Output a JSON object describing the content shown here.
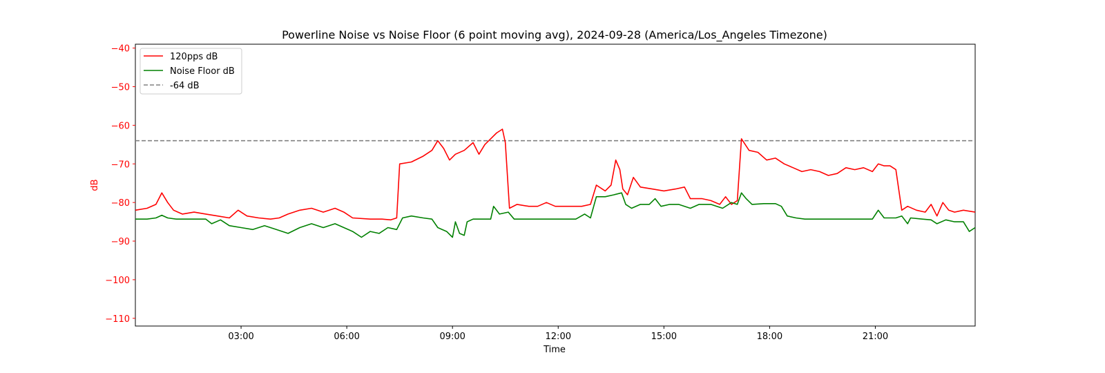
{
  "chart_data": {
    "type": "line",
    "title": "Powerline Noise vs Noise Floor (6 point moving avg), 2024-09-28 (America/Los_Angeles Timezone)",
    "xlabel": "Time",
    "ylabel": "dB",
    "ylabel_color": "#ff0000",
    "ytick_color": "#ff0000",
    "xlim": [
      "00:00",
      "23:50"
    ],
    "ylim": [
      -112,
      -39
    ],
    "xticks": [
      "03:00",
      "06:00",
      "09:00",
      "12:00",
      "15:00",
      "18:00",
      "21:00"
    ],
    "yticks": [
      -40,
      -50,
      -60,
      -70,
      -80,
      -90,
      -100,
      -110
    ],
    "ytick_labels": [
      "−40",
      "−50",
      "−60",
      "−70",
      "−80",
      "−90",
      "−100",
      "−110"
    ],
    "grid": false,
    "legend_position": "top-left",
    "reference_line": {
      "name": "-64 dB",
      "y": -64,
      "color": "#808080",
      "style": "dashed"
    },
    "series": [
      {
        "name": "120pps dB",
        "color": "#ff0000",
        "points": [
          [
            "00:00",
            -82
          ],
          [
            "00:20",
            -81.5
          ],
          [
            "00:35",
            -80.5
          ],
          [
            "00:45",
            -77.5
          ],
          [
            "00:55",
            -80
          ],
          [
            "01:05",
            -82
          ],
          [
            "01:20",
            -83
          ],
          [
            "01:40",
            -82.5
          ],
          [
            "02:00",
            -83
          ],
          [
            "02:20",
            -83.5
          ],
          [
            "02:40",
            -84
          ],
          [
            "02:55",
            -82
          ],
          [
            "03:10",
            -83.5
          ],
          [
            "03:30",
            -84
          ],
          [
            "03:50",
            -84.3
          ],
          [
            "04:05",
            -84
          ],
          [
            "04:20",
            -83
          ],
          [
            "04:40",
            -82
          ],
          [
            "05:00",
            -81.5
          ],
          [
            "05:20",
            -82.5
          ],
          [
            "05:40",
            -81.5
          ],
          [
            "05:55",
            -82.5
          ],
          [
            "06:10",
            -84
          ],
          [
            "06:40",
            -84.3
          ],
          [
            "07:00",
            -84.3
          ],
          [
            "07:15",
            -84.5
          ],
          [
            "07:25",
            -84
          ],
          [
            "07:30",
            -70
          ],
          [
            "07:50",
            -69.5
          ],
          [
            "08:10",
            -68
          ],
          [
            "08:25",
            -66.5
          ],
          [
            "08:35",
            -64
          ],
          [
            "08:45",
            -66
          ],
          [
            "08:55",
            -69
          ],
          [
            "09:05",
            -67.5
          ],
          [
            "09:20",
            -66.5
          ],
          [
            "09:35",
            -64.5
          ],
          [
            "09:45",
            -67.5
          ],
          [
            "09:55",
            -65
          ],
          [
            "10:05",
            -63.5
          ],
          [
            "10:15",
            -62
          ],
          [
            "10:25",
            -61
          ],
          [
            "10:30",
            -64.5
          ],
          [
            "10:37",
            -81.5
          ],
          [
            "10:50",
            -80.5
          ],
          [
            "11:10",
            -81
          ],
          [
            "11:25",
            -81
          ],
          [
            "11:40",
            -80
          ],
          [
            "11:55",
            -81
          ],
          [
            "12:10",
            -81
          ],
          [
            "12:40",
            -81
          ],
          [
            "12:55",
            -80.5
          ],
          [
            "13:05",
            -75.5
          ],
          [
            "13:20",
            -77
          ],
          [
            "13:30",
            -75.5
          ],
          [
            "13:38",
            -69
          ],
          [
            "13:45",
            -71.5
          ],
          [
            "13:50",
            -76.5
          ],
          [
            "13:58",
            -78
          ],
          [
            "14:08",
            -73.5
          ],
          [
            "14:20",
            -76
          ],
          [
            "14:40",
            -76.5
          ],
          [
            "15:00",
            -77
          ],
          [
            "15:20",
            -76.5
          ],
          [
            "15:35",
            -76
          ],
          [
            "15:45",
            -79
          ],
          [
            "16:05",
            -79
          ],
          [
            "16:20",
            -79.5
          ],
          [
            "16:35",
            -80.5
          ],
          [
            "16:45",
            -78.5
          ],
          [
            "16:55",
            -80.5
          ],
          [
            "17:05",
            -79.5
          ],
          [
            "17:12",
            -63.5
          ],
          [
            "17:25",
            -66.5
          ],
          [
            "17:40",
            -67
          ],
          [
            "17:55",
            -69
          ],
          [
            "18:10",
            -68.5
          ],
          [
            "18:25",
            -70
          ],
          [
            "18:40",
            -71
          ],
          [
            "18:55",
            -72
          ],
          [
            "19:10",
            -71.5
          ],
          [
            "19:25",
            -72
          ],
          [
            "19:40",
            -73
          ],
          [
            "19:55",
            -72.5
          ],
          [
            "20:10",
            -71
          ],
          [
            "20:25",
            -71.5
          ],
          [
            "20:40",
            -71
          ],
          [
            "20:55",
            -72
          ],
          [
            "21:05",
            -70
          ],
          [
            "21:15",
            -70.5
          ],
          [
            "21:25",
            -70.5
          ],
          [
            "21:35",
            -71.5
          ],
          [
            "21:45",
            -82
          ],
          [
            "21:55",
            -81
          ],
          [
            "22:10",
            -82
          ],
          [
            "22:25",
            -82.5
          ],
          [
            "22:35",
            -80.5
          ],
          [
            "22:45",
            -83.5
          ],
          [
            "22:55",
            -80
          ],
          [
            "23:05",
            -82
          ],
          [
            "23:15",
            -82.5
          ],
          [
            "23:30",
            -82
          ],
          [
            "23:50",
            -82.5
          ]
        ]
      },
      {
        "name": "Noise Floor dB",
        "color": "#008000",
        "points": [
          [
            "00:00",
            -84.3
          ],
          [
            "00:20",
            -84.3
          ],
          [
            "00:35",
            -84
          ],
          [
            "00:45",
            -83.3
          ],
          [
            "00:55",
            -84
          ],
          [
            "01:10",
            -84.3
          ],
          [
            "01:40",
            -84.3
          ],
          [
            "02:00",
            -84.3
          ],
          [
            "02:10",
            -85.5
          ],
          [
            "02:25",
            -84.5
          ],
          [
            "02:40",
            -86
          ],
          [
            "03:00",
            -86.5
          ],
          [
            "03:20",
            -87
          ],
          [
            "03:40",
            -86
          ],
          [
            "04:00",
            -87
          ],
          [
            "04:20",
            -88
          ],
          [
            "04:40",
            -86.5
          ],
          [
            "05:00",
            -85.5
          ],
          [
            "05:20",
            -86.5
          ],
          [
            "05:40",
            -85.5
          ],
          [
            "05:55",
            -86.5
          ],
          [
            "06:10",
            -87.5
          ],
          [
            "06:25",
            -89
          ],
          [
            "06:40",
            -87.5
          ],
          [
            "06:55",
            -88
          ],
          [
            "07:10",
            -86.5
          ],
          [
            "07:25",
            -87
          ],
          [
            "07:35",
            -84
          ],
          [
            "07:50",
            -83.5
          ],
          [
            "08:10",
            -84
          ],
          [
            "08:25",
            -84.3
          ],
          [
            "08:35",
            -86.5
          ],
          [
            "08:50",
            -87.5
          ],
          [
            "09:00",
            -89
          ],
          [
            "09:05",
            -85
          ],
          [
            "09:12",
            -88
          ],
          [
            "09:20",
            -88.5
          ],
          [
            "09:25",
            -85
          ],
          [
            "09:35",
            -84.3
          ],
          [
            "09:50",
            -84.3
          ],
          [
            "10:05",
            -84.3
          ],
          [
            "10:10",
            -81
          ],
          [
            "10:20",
            -83
          ],
          [
            "10:35",
            -82.5
          ],
          [
            "10:45",
            -84.3
          ],
          [
            "11:05",
            -84.3
          ],
          [
            "11:30",
            -84.3
          ],
          [
            "12:00",
            -84.3
          ],
          [
            "12:30",
            -84.3
          ],
          [
            "12:45",
            -83
          ],
          [
            "12:55",
            -84
          ],
          [
            "13:05",
            -78.5
          ],
          [
            "13:20",
            -78.5
          ],
          [
            "13:35",
            -78
          ],
          [
            "13:48",
            -77.5
          ],
          [
            "13:55",
            -80.5
          ],
          [
            "14:05",
            -81.5
          ],
          [
            "14:20",
            -80.5
          ],
          [
            "14:35",
            -80.5
          ],
          [
            "14:45",
            -79
          ],
          [
            "14:55",
            -81
          ],
          [
            "15:10",
            -80.5
          ],
          [
            "15:25",
            -80.5
          ],
          [
            "15:45",
            -81.5
          ],
          [
            "16:00",
            -80.5
          ],
          [
            "16:20",
            -80.5
          ],
          [
            "16:40",
            -81.5
          ],
          [
            "16:55",
            -80
          ],
          [
            "17:05",
            -80.5
          ],
          [
            "17:12",
            -77.5
          ],
          [
            "17:20",
            -79
          ],
          [
            "17:30",
            -80.5
          ],
          [
            "17:50",
            -80.3
          ],
          [
            "18:10",
            -80.3
          ],
          [
            "18:20",
            -81
          ],
          [
            "18:30",
            -83.5
          ],
          [
            "18:45",
            -84
          ],
          [
            "19:00",
            -84.3
          ],
          [
            "19:30",
            -84.3
          ],
          [
            "20:00",
            -84.3
          ],
          [
            "20:30",
            -84.3
          ],
          [
            "20:55",
            -84.3
          ],
          [
            "21:05",
            -82
          ],
          [
            "21:15",
            -84
          ],
          [
            "21:35",
            -84
          ],
          [
            "21:45",
            -83.5
          ],
          [
            "21:55",
            -85.5
          ],
          [
            "22:00",
            -84
          ],
          [
            "22:20",
            -84.3
          ],
          [
            "22:35",
            -84.5
          ],
          [
            "22:45",
            -85.5
          ],
          [
            "23:00",
            -84.5
          ],
          [
            "23:15",
            -85
          ],
          [
            "23:30",
            -85
          ],
          [
            "23:40",
            -87.5
          ],
          [
            "23:50",
            -86.5
          ]
        ]
      }
    ]
  }
}
